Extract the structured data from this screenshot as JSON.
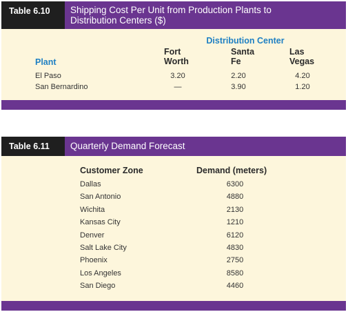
{
  "table1": {
    "number": "Table 6.10",
    "title_line1": "Shipping Cost Per Unit from Production Plants to",
    "title_line2": "Distribution Centers ($)",
    "group_header": "Distribution Center",
    "plant_header": "Plant",
    "columns": [
      {
        "line1": "Fort",
        "line2": "Worth"
      },
      {
        "line1": "Santa",
        "line2": "Fe"
      },
      {
        "line1": "Las",
        "line2": "Vegas"
      }
    ],
    "rows": [
      {
        "plant": "El Paso",
        "values": [
          "3.20",
          "2.20",
          "4.20"
        ]
      },
      {
        "plant": "San Bernardino",
        "values": [
          "—",
          "3.90",
          "1.20"
        ]
      }
    ]
  },
  "table2": {
    "number": "Table 6.11",
    "title": "Quarterly Demand Forecast",
    "col_zone": "Customer Zone",
    "col_demand": "Demand (meters)",
    "rows": [
      {
        "zone": "Dallas",
        "demand": "6300"
      },
      {
        "zone": "San Antonio",
        "demand": "4880"
      },
      {
        "zone": "Wichita",
        "demand": "2130"
      },
      {
        "zone": "Kansas City",
        "demand": "1210"
      },
      {
        "zone": "Denver",
        "demand": "6120"
      },
      {
        "zone": "Salt Lake City",
        "demand": "4830"
      },
      {
        "zone": "Phoenix",
        "demand": "2750"
      },
      {
        "zone": "Los Angeles",
        "demand": "8580"
      },
      {
        "zone": "San Diego",
        "demand": "4460"
      }
    ]
  }
}
